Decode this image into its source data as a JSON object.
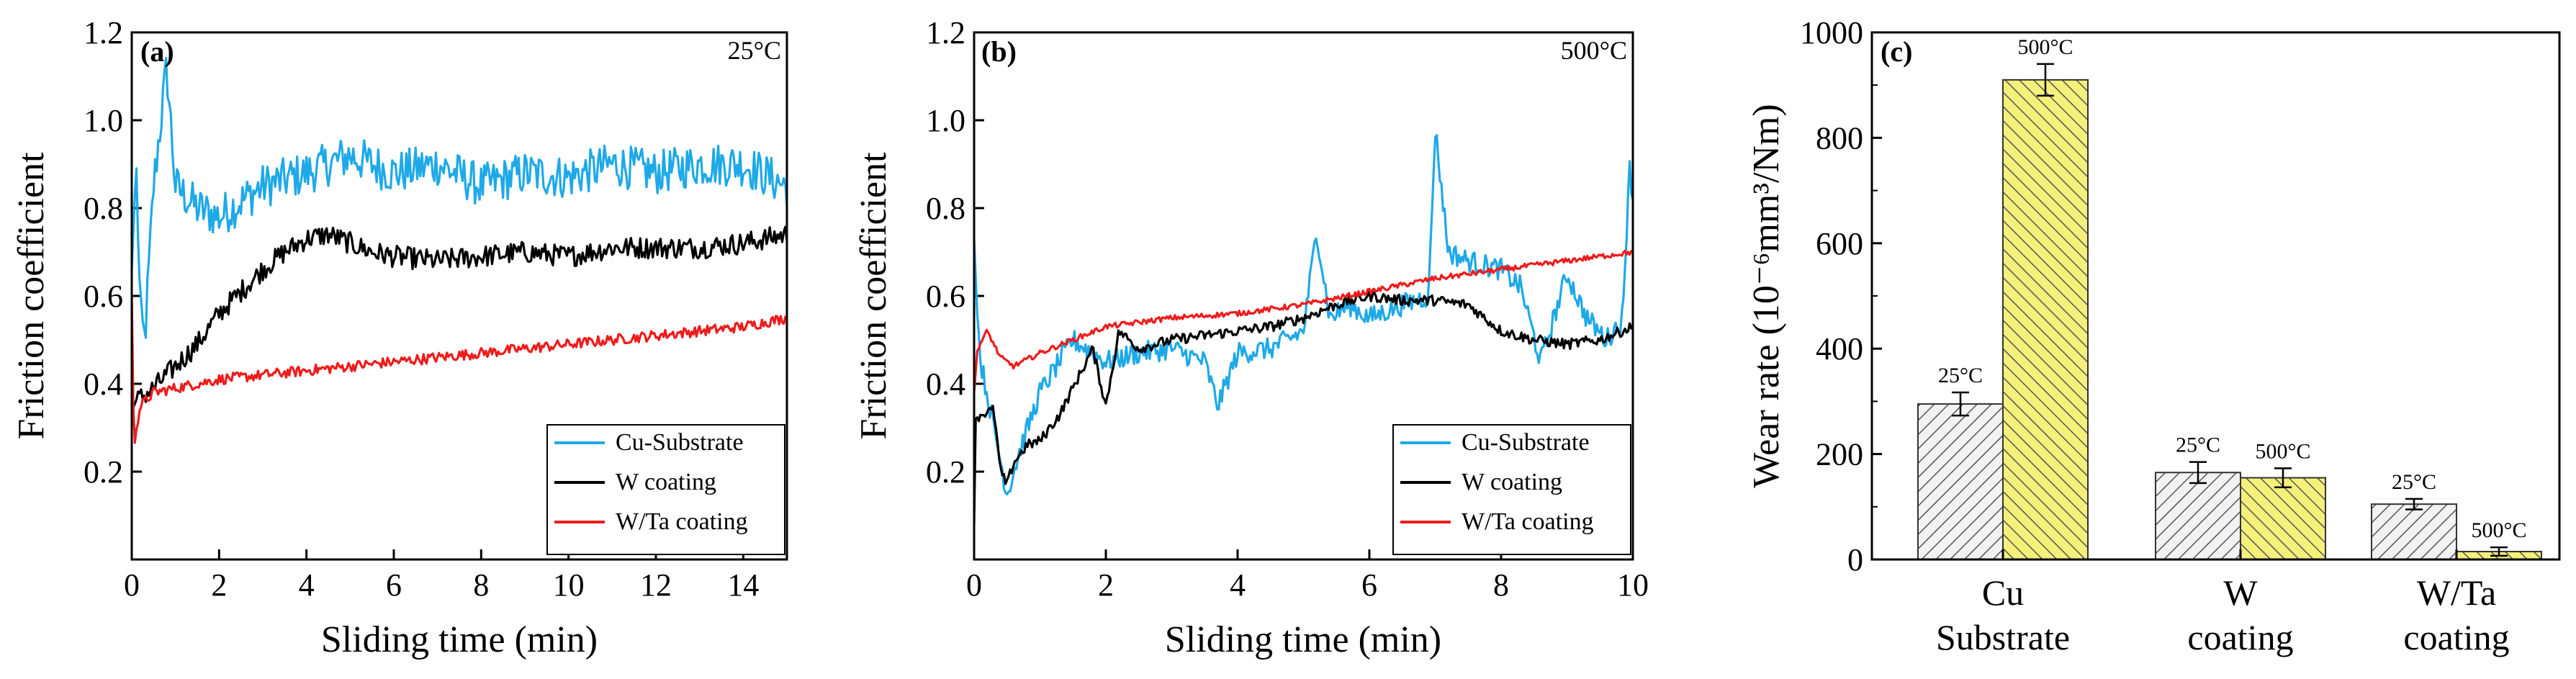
{
  "chart_data": [
    {
      "type": "line",
      "panel_label": "(a)",
      "temperature": "25°C",
      "xlabel": "Sliding time (min)",
      "ylabel": "Friction coefficient",
      "xlim": [
        0,
        15
      ],
      "ylim": [
        0.0,
        1.2
      ],
      "xticks": [
        "0",
        "2",
        "4",
        "6",
        "8",
        "10",
        "12",
        "14"
      ],
      "yticks": [
        "0.2",
        "0.4",
        "0.6",
        "0.8",
        "1.0",
        "1.2"
      ],
      "legend_position": "bottom-right",
      "series": [
        {
          "name": "Cu-Substrate",
          "color": "#1ea9e8",
          "x": [
            0,
            0.1,
            0.2,
            0.3,
            0.5,
            0.8,
            1,
            1.5,
            2,
            3,
            4,
            5,
            6,
            7,
            8,
            9,
            10,
            11,
            12,
            13,
            14,
            15
          ],
          "y": [
            0.66,
            0.9,
            0.55,
            0.5,
            0.85,
            1.12,
            0.85,
            0.8,
            0.78,
            0.85,
            0.88,
            0.92,
            0.88,
            0.9,
            0.85,
            0.88,
            0.87,
            0.9,
            0.88,
            0.9,
            0.9,
            0.85
          ]
        },
        {
          "name": "W coating",
          "color": "#000000",
          "x": [
            0,
            0.1,
            0.5,
            1,
            1.5,
            2,
            2.5,
            3,
            3.5,
            4,
            4.5,
            5,
            5.5,
            6,
            7,
            8,
            9,
            10,
            11,
            12,
            13,
            14,
            15
          ],
          "y": [
            0.34,
            0.36,
            0.39,
            0.44,
            0.49,
            0.56,
            0.61,
            0.66,
            0.7,
            0.73,
            0.74,
            0.72,
            0.7,
            0.69,
            0.68,
            0.69,
            0.7,
            0.69,
            0.71,
            0.71,
            0.71,
            0.72,
            0.74
          ]
        },
        {
          "name": "W/Ta coating",
          "color": "#ee1c1c",
          "x": [
            0,
            0.05,
            0.1,
            0.2,
            0.5,
            1,
            2,
            3,
            4,
            5,
            6,
            7,
            8,
            9,
            10,
            11,
            12,
            13,
            14,
            15
          ],
          "y": [
            0.6,
            0.24,
            0.3,
            0.35,
            0.38,
            0.39,
            0.41,
            0.42,
            0.43,
            0.44,
            0.45,
            0.46,
            0.47,
            0.48,
            0.49,
            0.5,
            0.51,
            0.52,
            0.53,
            0.55
          ]
        }
      ]
    },
    {
      "type": "line",
      "panel_label": "(b)",
      "temperature": "500°C",
      "xlabel": "Sliding time (min)",
      "ylabel": "Friction coefficient",
      "xlim": [
        0,
        10
      ],
      "ylim": [
        0.0,
        1.2
      ],
      "xticks": [
        "0",
        "2",
        "4",
        "6",
        "8",
        "10"
      ],
      "yticks": [
        "0.2",
        "0.4",
        "0.6",
        "0.8",
        "1.0",
        "1.2"
      ],
      "legend_position": "bottom-right",
      "series": [
        {
          "name": "Cu-Substrate",
          "color": "#1ea9e8",
          "x": [
            0,
            0.05,
            0.1,
            0.3,
            0.5,
            0.7,
            1,
            1.5,
            2,
            2.5,
            3,
            3.5,
            3.7,
            4,
            4.5,
            5,
            5.2,
            5.4,
            5.7,
            6,
            6.5,
            6.9,
            7,
            7.2,
            7.5,
            8,
            8.3,
            8.6,
            9,
            9.3,
            9.6,
            9.85,
            9.95,
            10
          ],
          "y": [
            0.73,
            0.55,
            0.45,
            0.3,
            0.15,
            0.25,
            0.38,
            0.5,
            0.45,
            0.47,
            0.48,
            0.45,
            0.35,
            0.47,
            0.48,
            0.52,
            0.75,
            0.55,
            0.58,
            0.55,
            0.58,
            0.6,
            0.98,
            0.7,
            0.68,
            0.66,
            0.62,
            0.45,
            0.65,
            0.55,
            0.5,
            0.55,
            0.92,
            0.8
          ]
        },
        {
          "name": "W coating",
          "color": "#000000",
          "x": [
            0,
            0.02,
            0.1,
            0.3,
            0.4,
            0.5,
            0.6,
            0.8,
            1,
            1.3,
            1.6,
            1.8,
            2,
            2.2,
            2.5,
            3,
            3.5,
            4,
            4.5,
            5,
            5.5,
            6,
            6.5,
            7,
            7.5,
            8,
            8.5,
            9,
            9.5,
            10
          ],
          "y": [
            0.08,
            0.32,
            0.33,
            0.34,
            0.2,
            0.17,
            0.22,
            0.26,
            0.27,
            0.33,
            0.42,
            0.48,
            0.35,
            0.52,
            0.48,
            0.5,
            0.51,
            0.52,
            0.53,
            0.55,
            0.58,
            0.6,
            0.59,
            0.59,
            0.58,
            0.52,
            0.5,
            0.49,
            0.5,
            0.53
          ]
        },
        {
          "name": "W/Ta coating",
          "color": "#ee1c1c",
          "x": [
            0,
            0.05,
            0.2,
            0.4,
            0.6,
            1,
            1.5,
            2,
            3,
            4,
            5,
            6,
            7,
            8,
            9,
            10
          ],
          "y": [
            0.38,
            0.48,
            0.52,
            0.46,
            0.44,
            0.47,
            0.5,
            0.53,
            0.55,
            0.56,
            0.58,
            0.61,
            0.64,
            0.66,
            0.68,
            0.7
          ]
        }
      ]
    },
    {
      "type": "bar",
      "panel_label": "(c)",
      "ylabel": "Wear rate (10⁻⁶mm³/Nm)",
      "ylim": [
        0,
        1000
      ],
      "yticks": [
        "0",
        "200",
        "400",
        "600",
        "800",
        "1000"
      ],
      "categories": [
        {
          "line1": "Cu",
          "line2": "Substrate"
        },
        {
          "line1": "W",
          "line2": "coating"
        },
        {
          "line1": "W/Ta",
          "line2": "coating"
        }
      ],
      "series": [
        {
          "name": "25°C",
          "label": "25°C",
          "fill": "#f2f2f2",
          "values": [
            295,
            165,
            105
          ],
          "errors": [
            22,
            20,
            10
          ]
        },
        {
          "name": "500°C",
          "label": "500°C",
          "fill": "#f4f07a",
          "values": [
            910,
            155,
            15
          ],
          "errors": [
            30,
            18,
            8
          ]
        }
      ]
    }
  ]
}
